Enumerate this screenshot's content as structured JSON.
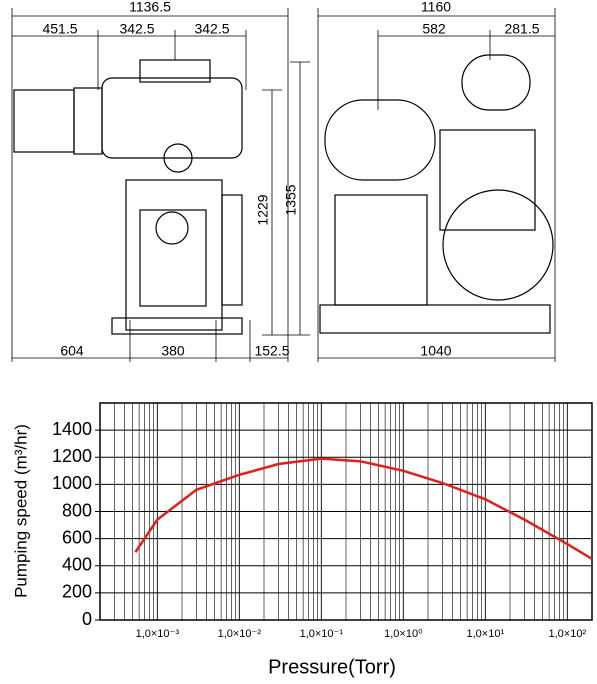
{
  "drawing": {
    "left_view": {
      "overall_width": "1136.5",
      "top_dims": [
        "451.5",
        "342.5",
        "342.5"
      ],
      "height_inner": "1229",
      "height_total": "1355",
      "bottom_dims": [
        "604",
        "380",
        "152.5"
      ]
    },
    "right_view": {
      "overall_width": "1160",
      "top_dims": [
        "582",
        "281.5"
      ],
      "base_width": "1040"
    }
  },
  "chart_data": {
    "type": "line",
    "xlabel": "Pressure(Torr)",
    "ylabel": "Pumping speed (m³/hr)",
    "x": [
      0.00054,
      0.001,
      0.003,
      0.01,
      0.03,
      0.1,
      0.3,
      1,
      3,
      10,
      30,
      100,
      200
    ],
    "series": [
      {
        "color": "#e0201b",
        "values": [
          500,
          740,
          960,
          1070,
          1150,
          1190,
          1170,
          1100,
          1010,
          890,
          740,
          560,
          450
        ]
      }
    ],
    "xlim": [
      0.0002,
      200
    ],
    "xscale": "log",
    "xticks": [
      {
        "value": 0.001,
        "label": "1,0×10⁻³"
      },
      {
        "value": 0.01,
        "label": "1,0×10⁻²"
      },
      {
        "value": 0.1,
        "label": "1,0×10⁻¹"
      },
      {
        "value": 1,
        "label": "1,0×10⁰"
      },
      {
        "value": 10,
        "label": "1,0×10¹"
      },
      {
        "value": 100,
        "label": "1,0×10²"
      }
    ],
    "ylim": [
      0,
      1600
    ],
    "yticks": [
      0,
      200,
      400,
      600,
      800,
      1000,
      1200,
      1400
    ],
    "grid": true
  }
}
